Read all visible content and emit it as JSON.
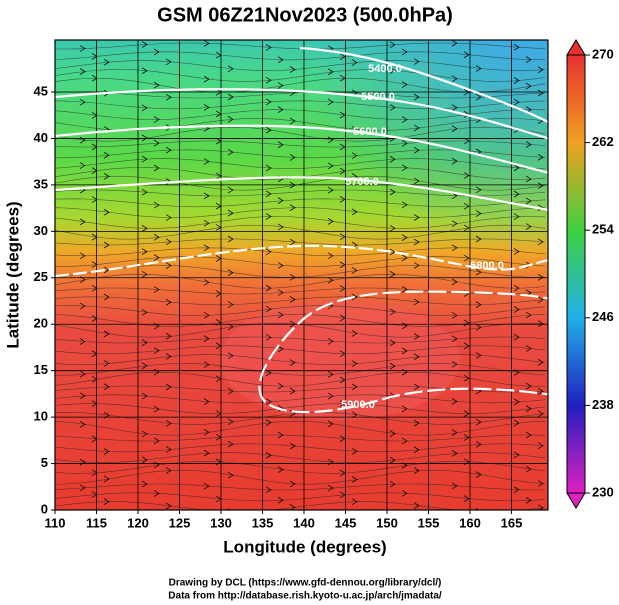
{
  "title": "GSM 06Z21Nov2023 (500.0hPa)",
  "map": {
    "xlabel": "Longitude (degrees)",
    "ylabel": "Latitude  (degrees)",
    "xlim": [
      110,
      169.4
    ],
    "ylim": [
      0,
      50.6
    ],
    "xticks": [
      110,
      115,
      120,
      125,
      130,
      135,
      140,
      145,
      150,
      155,
      160,
      165
    ],
    "yticks": [
      0,
      5,
      10,
      15,
      20,
      25,
      30,
      35,
      40,
      45
    ],
    "grid": true
  },
  "colorbar": {
    "lim": [
      230,
      270
    ],
    "ticks": [
      230,
      238,
      246,
      254,
      262,
      270
    ]
  },
  "contour_labels": [
    "5400.0",
    "5500.0",
    "5600.0",
    "5700.0",
    "5800.0",
    "5900.0"
  ],
  "credits": [
    "Drawing by DCL (https://www.gfd-dennou.org/library/dcl/)",
    "Data from http://database.rish.kyoto-u.ac.jp/arch/jmadata/"
  ]
}
